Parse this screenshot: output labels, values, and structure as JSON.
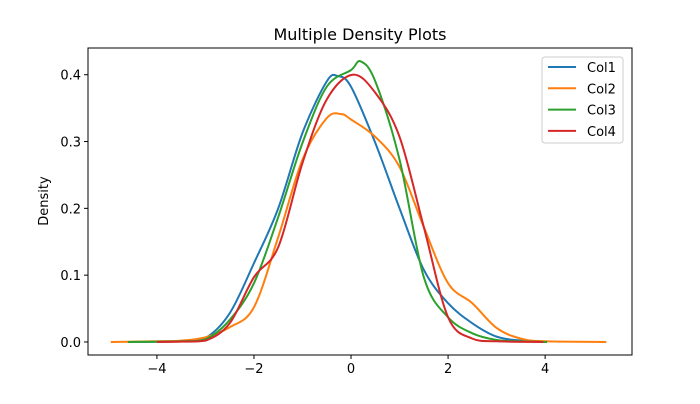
{
  "chart_data": {
    "type": "line",
    "title": "Multiple Density Plots",
    "xlabel": "",
    "ylabel": "Density",
    "xlim": [
      -5.42,
      5.79
    ],
    "ylim": [
      -0.0195,
      0.44
    ],
    "xticks": [
      -4,
      -2,
      0,
      2,
      4
    ],
    "xtick_labels": [
      "−4",
      "−2",
      "0",
      "2",
      "4"
    ],
    "yticks": [
      0.0,
      0.1,
      0.2,
      0.3,
      0.4
    ],
    "ytick_labels": [
      "0.0",
      "0.1",
      "0.2",
      "0.3",
      "0.4"
    ],
    "grid": false,
    "legend_placement": "top-right",
    "series": [
      {
        "name": "Col1",
        "color": "#1f77b4",
        "x": [
          -4.6,
          -3.5,
          -3,
          -2.5,
          -2,
          -1.5,
          -1,
          -0.5,
          -0.27,
          0,
          0.5,
          1,
          1.5,
          2,
          2.5,
          3,
          3.5,
          4.0
        ],
        "y": [
          0,
          0.001,
          0.006,
          0.043,
          0.118,
          0.2,
          0.313,
          0.39,
          0.398,
          0.382,
          0.298,
          0.2,
          0.108,
          0.058,
          0.028,
          0.008,
          0.002,
          0
        ]
      },
      {
        "name": "Col2",
        "color": "#ff7f0e",
        "x": [
          -4.95,
          -4,
          -3.5,
          -3,
          -2.5,
          -2,
          -1.5,
          -1,
          -0.5,
          -0.2,
          0,
          0.5,
          1,
          1.5,
          2,
          2.5,
          3,
          3.5,
          4,
          5.26
        ],
        "y": [
          0,
          0.001,
          0.002,
          0.007,
          0.022,
          0.052,
          0.157,
          0.273,
          0.335,
          0.341,
          0.333,
          0.307,
          0.262,
          0.172,
          0.088,
          0.058,
          0.021,
          0.005,
          0.001,
          0
        ]
      },
      {
        "name": "Col3",
        "color": "#2ca02c",
        "x": [
          -4.6,
          -3.5,
          -3,
          -2.5,
          -2,
          -1.5,
          -1,
          -0.5,
          0,
          0.2,
          0.5,
          1,
          1.5,
          2,
          2.5,
          3,
          3.5,
          4.04
        ],
        "y": [
          0,
          0.001,
          0.004,
          0.033,
          0.088,
          0.187,
          0.298,
          0.382,
          0.407,
          0.42,
          0.39,
          0.273,
          0.097,
          0.037,
          0.013,
          0.003,
          0.001,
          0
        ]
      },
      {
        "name": "Col4",
        "color": "#d62728",
        "x": [
          -4.0,
          -3.5,
          -3,
          -2.5,
          -2,
          -1.5,
          -1,
          -0.5,
          0.03,
          0.5,
          1,
          1.5,
          2,
          2.5,
          3,
          3.96
        ],
        "y": [
          0,
          0.0005,
          0.002,
          0.028,
          0.097,
          0.142,
          0.268,
          0.363,
          0.4,
          0.373,
          0.307,
          0.172,
          0.037,
          0.005,
          0.001,
          0
        ]
      }
    ]
  }
}
